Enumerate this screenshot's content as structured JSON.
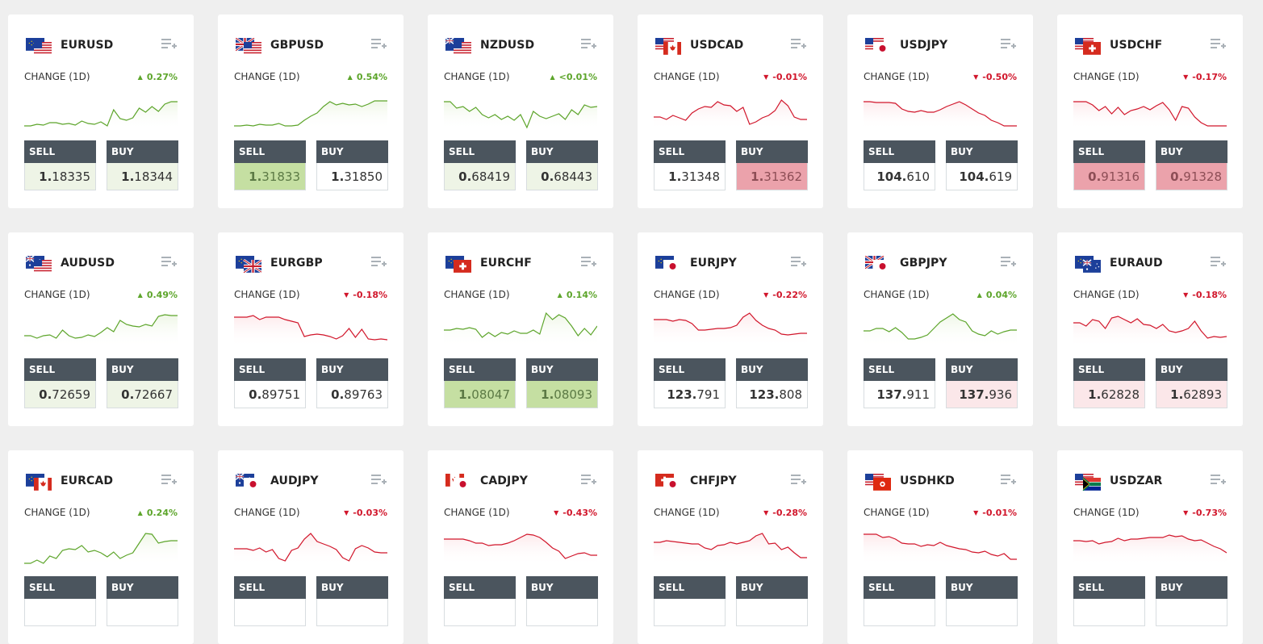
{
  "change_label": "CHANGE (1D)",
  "sell_label": "SELL",
  "buy_label": "BUY",
  "colors": {
    "up": "#5da52b",
    "down": "#d1162b",
    "header": "#4b555e"
  },
  "cards": [
    {
      "pair": "EURUSD",
      "flags": [
        "eu",
        "us"
      ],
      "dir": "up",
      "change": "0.27%",
      "sell": {
        "big": "1.",
        "small": "18335"
      },
      "buy": {
        "big": "1.",
        "small": "18344"
      },
      "sell_bg": "lg",
      "buy_bg": "lg",
      "spark": [
        38,
        38,
        36,
        37,
        34,
        34,
        36,
        35,
        37,
        32,
        35,
        36,
        33,
        38,
        18,
        29,
        31,
        28,
        16,
        21,
        14,
        20,
        11,
        8,
        8
      ]
    },
    {
      "pair": "GBPUSD",
      "flags": [
        "gb",
        "us"
      ],
      "dir": "up",
      "change": "0.54%",
      "sell": {
        "big": "1.",
        "small": "31833"
      },
      "buy": {
        "big": "1.",
        "small": "31850"
      },
      "sell_bg": "g",
      "buy_bg": "w",
      "spark": [
        38,
        38,
        37,
        38,
        36,
        37,
        37,
        35,
        38,
        38,
        37,
        31,
        26,
        22,
        14,
        8,
        12,
        10,
        12,
        11,
        14,
        11,
        7,
        7,
        7
      ]
    },
    {
      "pair": "NZDUSD",
      "flags": [
        "nz",
        "us"
      ],
      "dir": "up",
      "change": "<0.01%",
      "sell": {
        "big": "0.",
        "small": "68419"
      },
      "buy": {
        "big": "0.",
        "small": "68443"
      },
      "sell_bg": "lg",
      "buy_bg": "lg",
      "spark": [
        8,
        8,
        16,
        14,
        20,
        15,
        24,
        28,
        24,
        30,
        26,
        31,
        24,
        40,
        20,
        26,
        29,
        26,
        23,
        30,
        18,
        24,
        12,
        15,
        14
      ]
    },
    {
      "pair": "USDCAD",
      "flags": [
        "us",
        "ca"
      ],
      "dir": "down",
      "change": "-0.01%",
      "sell": {
        "big": "1.",
        "small": "31348"
      },
      "buy": {
        "big": "1.",
        "small": "31362"
      },
      "sell_bg": "w",
      "buy_bg": "r",
      "spark": [
        27,
        27,
        30,
        25,
        28,
        31,
        22,
        17,
        14,
        15,
        8,
        12,
        13,
        20,
        15,
        36,
        33,
        28,
        25,
        19,
        6,
        13,
        27,
        30,
        30
      ]
    },
    {
      "pair": "USDJPY",
      "flags": [
        "us",
        "jp"
      ],
      "dir": "down",
      "change": "-0.50%",
      "sell": {
        "big": "104.",
        "small": "610"
      },
      "buy": {
        "big": "104.",
        "small": "619"
      },
      "sell_bg": "w",
      "buy_bg": "w",
      "spark": [
        8,
        8,
        9,
        9,
        9,
        10,
        17,
        20,
        21,
        19,
        21,
        21,
        18,
        14,
        11,
        8,
        12,
        17,
        22,
        25,
        31,
        34,
        38,
        38,
        38
      ]
    },
    {
      "pair": "USDCHF",
      "flags": [
        "us",
        "ch"
      ],
      "dir": "down",
      "change": "-0.17%",
      "sell": {
        "big": "0.",
        "small": "91316"
      },
      "buy": {
        "big": "0.",
        "small": "91328"
      },
      "sell_bg": "r",
      "buy_bg": "r",
      "spark": [
        8,
        8,
        8,
        12,
        19,
        14,
        23,
        15,
        24,
        19,
        17,
        14,
        18,
        13,
        9,
        18,
        31,
        14,
        16,
        27,
        34,
        38,
        38,
        38,
        38
      ]
    },
    {
      "pair": "AUDUSD",
      "flags": [
        "au",
        "us"
      ],
      "dir": "up",
      "change": "0.49%",
      "sell": {
        "big": "0.",
        "small": "72659"
      },
      "buy": {
        "big": "0.",
        "small": "72667"
      },
      "sell_bg": "lg",
      "buy_bg": "lg",
      "spark": [
        28,
        28,
        31,
        28,
        27,
        31,
        21,
        28,
        31,
        30,
        27,
        29,
        24,
        18,
        23,
        9,
        14,
        16,
        17,
        14,
        16,
        4,
        2,
        3,
        3
      ]
    },
    {
      "pair": "EURGBP",
      "flags": [
        "eu",
        "gb"
      ],
      "dir": "down",
      "change": "-0.18%",
      "sell": {
        "big": "0.",
        "small": "89751"
      },
      "buy": {
        "big": "0.",
        "small": "89763"
      },
      "sell_bg": "w",
      "buy_bg": "w",
      "spark": [
        5,
        5,
        5,
        3,
        8,
        5,
        5,
        5,
        8,
        10,
        12,
        29,
        27,
        26,
        27,
        29,
        32,
        28,
        19,
        30,
        20,
        32,
        33,
        32,
        33
      ]
    },
    {
      "pair": "EURCHF",
      "flags": [
        "eu",
        "ch"
      ],
      "dir": "up",
      "change": "0.14%",
      "sell": {
        "big": "1.",
        "small": "08047"
      },
      "buy": {
        "big": "1.",
        "small": "08093"
      },
      "sell_bg": "g",
      "buy_bg": "g",
      "spark": [
        21,
        21,
        19,
        20,
        18,
        20,
        30,
        24,
        29,
        24,
        26,
        22,
        25,
        25,
        21,
        26,
        0,
        8,
        2,
        6,
        16,
        28,
        19,
        27,
        16
      ]
    },
    {
      "pair": "EURJPY",
      "flags": [
        "eu",
        "jp"
      ],
      "dir": "down",
      "change": "-0.22%",
      "sell": {
        "big": "123.",
        "small": "791"
      },
      "buy": {
        "big": "123.",
        "small": "808"
      },
      "sell_bg": "w",
      "buy_bg": "w",
      "spark": [
        8,
        8,
        8,
        10,
        8,
        9,
        13,
        21,
        21,
        20,
        19,
        19,
        18,
        15,
        5,
        0,
        9,
        15,
        19,
        21,
        26,
        27,
        26,
        25,
        25
      ]
    },
    {
      "pair": "GBPJPY",
      "flags": [
        "gb",
        "jp"
      ],
      "dir": "up",
      "change": "0.04%",
      "sell": {
        "big": "137.",
        "small": "911"
      },
      "buy": {
        "big": "137.",
        "small": "936"
      },
      "sell_bg": "w",
      "buy_bg": "lr",
      "spark": [
        22,
        22,
        19,
        19,
        23,
        18,
        24,
        32,
        32,
        30,
        27,
        19,
        11,
        6,
        1,
        8,
        11,
        22,
        26,
        28,
        22,
        26,
        23,
        21,
        21
      ]
    },
    {
      "pair": "EURAUD",
      "flags": [
        "eu",
        "au"
      ],
      "dir": "down",
      "change": "-0.18%",
      "sell": {
        "big": "1.",
        "small": "62828"
      },
      "buy": {
        "big": "1.",
        "small": "62893"
      },
      "sell_bg": "lr",
      "buy_bg": "lr",
      "spark": [
        12,
        12,
        16,
        8,
        10,
        19,
        6,
        4,
        8,
        12,
        7,
        14,
        15,
        19,
        14,
        22,
        24,
        22,
        19,
        10,
        22,
        31,
        29,
        30,
        29
      ]
    },
    {
      "pair": "EURCAD",
      "flags": [
        "eu",
        "ca"
      ],
      "dir": "up",
      "change": "0.24%",
      "sell": null,
      "buy": null,
      "sell_bg": "w",
      "buy_bg": "w",
      "spark": [
        40,
        40,
        36,
        40,
        31,
        34,
        24,
        22,
        23,
        18,
        26,
        24,
        27,
        32,
        26,
        34,
        30,
        27,
        15,
        3,
        4,
        15,
        13,
        12,
        12
      ]
    },
    {
      "pair": "AUDJPY",
      "flags": [
        "au",
        "jp"
      ],
      "dir": "down",
      "change": "-0.03%",
      "sell": null,
      "buy": null,
      "sell_bg": "w",
      "buy_bg": "w",
      "spark": [
        22,
        22,
        22,
        24,
        21,
        26,
        23,
        34,
        37,
        24,
        21,
        10,
        3,
        13,
        16,
        19,
        23,
        33,
        37,
        22,
        18,
        21,
        26,
        27,
        27
      ]
    },
    {
      "pair": "CADJPY",
      "flags": [
        "ca",
        "jp"
      ],
      "dir": "down",
      "change": "-0.43%",
      "sell": null,
      "buy": null,
      "sell_bg": "w",
      "buy_bg": "w",
      "spark": [
        10,
        10,
        10,
        10,
        12,
        15,
        15,
        18,
        17,
        17,
        15,
        12,
        8,
        4,
        5,
        8,
        14,
        21,
        25,
        34,
        31,
        28,
        27,
        30,
        30
      ]
    },
    {
      "pair": "CHFJPY",
      "flags": [
        "ch",
        "jp"
      ],
      "dir": "down",
      "change": "-0.28%",
      "sell": null,
      "buy": null,
      "sell_bg": "w",
      "buy_bg": "w",
      "spark": [
        14,
        14,
        12,
        13,
        14,
        15,
        16,
        16,
        21,
        23,
        18,
        17,
        14,
        16,
        14,
        12,
        6,
        3,
        16,
        15,
        23,
        20,
        27,
        33,
        33
      ]
    },
    {
      "pair": "USDHKD",
      "flags": [
        "us",
        "hk"
      ],
      "dir": "down",
      "change": "-0.01%",
      "sell": null,
      "buy": null,
      "sell_bg": "w",
      "buy_bg": "w",
      "spark": [
        4,
        4,
        4,
        8,
        7,
        10,
        15,
        16,
        16,
        19,
        17,
        18,
        14,
        18,
        20,
        22,
        23,
        26,
        27,
        25,
        29,
        31,
        28,
        35,
        35
      ]
    },
    {
      "pair": "USDZAR",
      "flags": [
        "us",
        "za"
      ],
      "dir": "down",
      "change": "-0.73%",
      "sell": null,
      "buy": null,
      "sell_bg": "w",
      "buy_bg": "w",
      "spark": [
        12,
        12,
        13,
        12,
        16,
        14,
        13,
        9,
        12,
        10,
        10,
        9,
        8,
        8,
        8,
        5,
        7,
        6,
        10,
        12,
        11,
        15,
        19,
        22,
        27
      ]
    }
  ]
}
